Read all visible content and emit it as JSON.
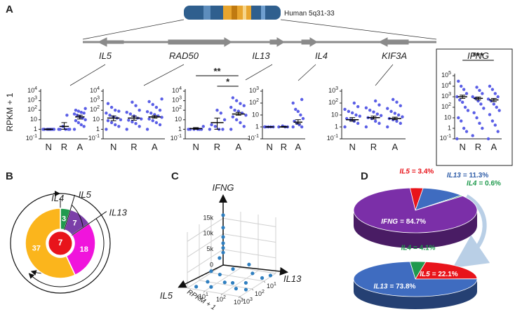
{
  "panel_labels": [
    "A",
    "B",
    "C",
    "D"
  ],
  "panel_a": {
    "chromosome_label": "Human 5q31-33",
    "genes": [
      "IL5",
      "RAD50",
      "IL13",
      "IL4",
      "KIF3A"
    ],
    "y_label": "RPKM + 1"
  },
  "chart_data": [
    {
      "type": "dot",
      "log": true,
      "color": "#5a5ee6",
      "categories": [
        "N",
        "R",
        "A"
      ],
      "ylim": [
        0.1,
        10000
      ],
      "yticks": [
        {
          "value": 0.1,
          "label": "10",
          "sup": "-1"
        },
        1,
        10,
        {
          "value": 100,
          "label": "10",
          "sup": "2"
        },
        {
          "value": 1000,
          "label": "10",
          "sup": "3"
        },
        {
          "value": 10000,
          "label": "10",
          "sup": "4"
        }
      ],
      "values": [
        [
          1,
          1,
          1,
          1,
          1,
          1,
          1,
          1
        ],
        [
          1,
          1,
          1,
          2,
          1,
          1,
          30
        ],
        [
          1,
          2,
          3,
          5,
          8,
          10,
          15,
          20,
          30,
          40,
          50,
          60,
          80,
          100,
          150
        ]
      ],
      "means": [
        1,
        2,
        20
      ],
      "error_bars": [
        [
          0.9,
          1.1
        ],
        [
          1,
          5
        ],
        [
          12,
          30
        ]
      ]
    },
    {
      "type": "dot",
      "log": true,
      "color": "#5a5ee6",
      "categories": [
        "N",
        "R",
        "A"
      ],
      "ylim": [
        0.1,
        10000
      ],
      "yticks": [
        {
          "value": 0.1,
          "label": "10",
          "sup": "-1"
        },
        1,
        10,
        {
          "value": 100,
          "label": "10",
          "sup": "2"
        },
        {
          "value": 1000,
          "label": "10",
          "sup": "3"
        },
        {
          "value": 10000,
          "label": "10",
          "sup": "4"
        }
      ],
      "values": [
        [
          1,
          2,
          3,
          5,
          8,
          10,
          15,
          20,
          30,
          50,
          80,
          100,
          200,
          500
        ],
        [
          1,
          2,
          4,
          6,
          9,
          12,
          15,
          25,
          40,
          60,
          100,
          300,
          700
        ],
        [
          1,
          3,
          5,
          8,
          12,
          18,
          25,
          35,
          50,
          70,
          100,
          200,
          400,
          800,
          1500
        ]
      ],
      "means": [
        15,
        15,
        20
      ],
      "error_bars": [
        [
          8,
          25
        ],
        [
          9,
          24
        ],
        [
          15,
          27
        ]
      ]
    },
    {
      "type": "dot",
      "log": true,
      "color": "#5a5ee6",
      "categories": [
        "N",
        "R",
        "A"
      ],
      "ylim": [
        0.1,
        10000
      ],
      "yticks": [
        {
          "value": 0.1,
          "label": "10",
          "sup": "-1"
        },
        1,
        10,
        {
          "value": 100,
          "label": "10",
          "sup": "2"
        },
        {
          "value": 1000,
          "label": "10",
          "sup": "3"
        },
        {
          "value": 10000,
          "label": "10",
          "sup": "4"
        }
      ],
      "values": [
        [
          1,
          1,
          1,
          1,
          1,
          2,
          1
        ],
        [
          1,
          1,
          1,
          2,
          3,
          10,
          50,
          100
        ],
        [
          1,
          2,
          5,
          10,
          20,
          30,
          50,
          80,
          100,
          200,
          300,
          500,
          1000,
          2000
        ]
      ],
      "means": [
        1.2,
        5,
        40
      ],
      "error_bars": [
        [
          1,
          1.5
        ],
        [
          1,
          15
        ],
        [
          30,
          60
        ]
      ],
      "annotations": [
        {
          "text": "**",
          "from": "N",
          "to": "A"
        },
        {
          "text": "*",
          "from": "R",
          "to": "A"
        }
      ]
    },
    {
      "type": "dot",
      "log": true,
      "color": "#5a5ee6",
      "categories": [
        "N",
        "R",
        "A"
      ],
      "ylim": [
        0.1,
        1000
      ],
      "yticks": [
        {
          "value": 0.1,
          "label": "10",
          "sup": "-1"
        },
        1,
        10,
        {
          "value": 100,
          "label": "10",
          "sup": "2"
        },
        {
          "value": 1000,
          "label": "10",
          "sup": "3"
        }
      ],
      "values": [
        [
          1,
          1,
          1,
          1,
          1
        ],
        [
          1,
          1,
          1,
          1.2
        ],
        [
          1,
          1,
          1.5,
          2,
          3,
          5,
          10,
          20,
          30,
          100,
          200
        ]
      ],
      "means": [
        1,
        1,
        2.5
      ],
      "error_bars": [
        [
          0.95,
          1.05
        ],
        [
          0.95,
          1.1
        ],
        [
          1.8,
          4
        ]
      ]
    },
    {
      "type": "dot",
      "log": true,
      "color": "#5a5ee6",
      "categories": [
        "N",
        "R",
        "A"
      ],
      "ylim": [
        0.1,
        1000
      ],
      "yticks": [
        {
          "value": 0.1,
          "label": "10",
          "sup": "-1"
        },
        1,
        10,
        {
          "value": 100,
          "label": "10",
          "sup": "2"
        },
        {
          "value": 1000,
          "label": "10",
          "sup": "3"
        }
      ],
      "values": [
        [
          1,
          2,
          3,
          4,
          5,
          8,
          10,
          15,
          20,
          30,
          50,
          100
        ],
        [
          1,
          2,
          3,
          5,
          6,
          9,
          12,
          18,
          25,
          40,
          70,
          150
        ],
        [
          1,
          2,
          3,
          4,
          5,
          7,
          10,
          14,
          20,
          35,
          60,
          120,
          200
        ]
      ],
      "means": [
        4,
        6,
        5
      ],
      "error_bars": [
        [
          3,
          6
        ],
        [
          4.5,
          8
        ],
        [
          4,
          6.5
        ]
      ]
    },
    {
      "type": "dot",
      "log": true,
      "title": "IFNG",
      "color": "#5a5ee6",
      "categories": [
        "N",
        "R",
        "A"
      ],
      "ylim": [
        0.1,
        100000
      ],
      "yticks": [
        {
          "value": 0.1,
          "label": "10",
          "sup": "-1"
        },
        1,
        10,
        {
          "value": 100,
          "label": "10",
          "sup": "2"
        },
        {
          "value": 1000,
          "label": "10",
          "sup": "3"
        },
        {
          "value": 10000,
          "label": "10",
          "sup": "4"
        },
        {
          "value": 100000,
          "label": "10",
          "sup": "5"
        }
      ],
      "values": [
        [
          0.1,
          0.5,
          1,
          5,
          10,
          50,
          100,
          300,
          500,
          1000,
          2000,
          5000,
          10000,
          30000
        ],
        [
          0.2,
          1,
          3,
          10,
          30,
          80,
          200,
          400,
          700,
          1000,
          2000,
          4000,
          8000
        ],
        [
          0.1,
          0.5,
          2,
          5,
          20,
          50,
          100,
          200,
          400,
          600,
          1000,
          2000,
          5000,
          10000
        ]
      ],
      "means": [
        1000,
        700,
        500
      ],
      "error_bars": [
        [
          700,
          1400
        ],
        [
          500,
          950
        ],
        [
          350,
          700
        ]
      ],
      "annotations": [
        {
          "text": "***",
          "from": "N",
          "to": "A"
        }
      ]
    },
    {
      "type": "donut",
      "categories": [
        "IL4",
        "IL5",
        "IL13",
        null
      ],
      "values": [
        3,
        7,
        18,
        37
      ],
      "colors": [
        "#1f9a4d",
        "#7b3fa8",
        "#f014dc",
        "#fbb51c"
      ],
      "center_value": 7,
      "center_color": "#e8141b"
    },
    {
      "type": "scatter3d",
      "color": "#2f7fc0",
      "axis_labels": {
        "z": "IFNG",
        "x": "IL5",
        "y": "IL13",
        "floor": "RPKM + 1"
      },
      "zlim": [
        0,
        18000
      ],
      "zticks": [
        0,
        {
          "value": 5000,
          "label": "5k"
        },
        {
          "value": 10000,
          "label": "10k"
        },
        {
          "value": 15000,
          "label": "15k"
        }
      ],
      "xlim": [
        1,
        1000
      ],
      "xticks": [
        {
          "value": 10,
          "label": "10",
          "sup": "1"
        },
        {
          "value": 100,
          "label": "10",
          "sup": "2"
        },
        {
          "value": 1000,
          "label": "10",
          "sup": "3"
        }
      ],
      "ylim": [
        1,
        1000
      ],
      "yticks": [
        {
          "value": 10,
          "label": "10",
          "sup": "1"
        },
        {
          "value": 100,
          "label": "10",
          "sup": "2"
        },
        {
          "value": 1000,
          "label": "10",
          "sup": "3"
        }
      ],
      "x": [
        1,
        1,
        1,
        1,
        1,
        1,
        2,
        10,
        100,
        300,
        30,
        5,
        50,
        200,
        1,
        3,
        20,
        500,
        2,
        60,
        150,
        8
      ],
      "y": [
        1,
        1,
        1,
        1,
        1,
        1,
        1,
        1,
        3,
        10,
        200,
        500,
        50,
        200,
        30,
        100,
        5,
        2,
        800,
        20,
        600,
        15
      ],
      "z": [
        16000,
        12000,
        9000,
        7000,
        5500,
        4000,
        3000,
        500,
        0,
        0,
        0,
        0,
        0,
        200,
        1500,
        300,
        800,
        0,
        0,
        0,
        0,
        2000
      ]
    },
    {
      "type": "pie3d",
      "categories": [
        "IL5",
        "IL13",
        "IL4",
        "IFNG"
      ],
      "values": [
        3.4,
        11.3,
        0.6,
        84.7
      ],
      "value_labels": [
        "= 3.4%",
        "= 11.3%",
        "= 0.6%",
        "= 84.7%"
      ],
      "colors": [
        "#e8141b",
        "#3f6cc0",
        "#1f9a4d",
        "#7b2fa8"
      ],
      "label_colors": [
        "#e8141b",
        "#2f5da8",
        "#1f9a4d",
        "#ffffff"
      ]
    },
    {
      "type": "pie3d",
      "categories": [
        "IL4",
        "IL5",
        "IL13"
      ],
      "values": [
        4.1,
        22.1,
        73.8
      ],
      "value_labels": [
        "= 4.1%",
        "= 22.1%",
        "= 73.8%"
      ],
      "colors": [
        "#1f9a4d",
        "#e8141b",
        "#3f6cc0"
      ],
      "label_colors": [
        "#1f9a4d",
        "#ffffff",
        "#ffffff"
      ]
    }
  ]
}
